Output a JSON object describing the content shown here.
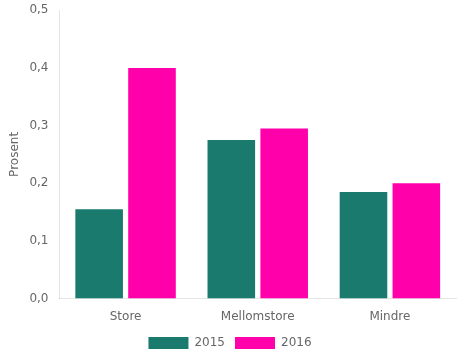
{
  "chart_data": {
    "type": "bar",
    "categories": [
      "Store",
      "Mellomstore",
      "Mindre"
    ],
    "series": [
      {
        "name": "2015",
        "color": "#1a7a6e",
        "values": [
          0.155,
          0.275,
          0.185
        ]
      },
      {
        "name": "2016",
        "color": "#ff00aa",
        "values": [
          0.4,
          0.295,
          0.2
        ]
      }
    ],
    "ylabel": "Prosent",
    "ylim": [
      0.0,
      0.5
    ],
    "yticks": [
      {
        "value": 0.0,
        "label": "0,0"
      },
      {
        "value": 0.1,
        "label": "0,1"
      },
      {
        "value": 0.2,
        "label": "0,2"
      },
      {
        "value": 0.3,
        "label": "0,3"
      },
      {
        "value": 0.4,
        "label": "0,4"
      },
      {
        "value": 0.5,
        "label": "0,5"
      }
    ],
    "grid": false,
    "legend": "bottom"
  }
}
